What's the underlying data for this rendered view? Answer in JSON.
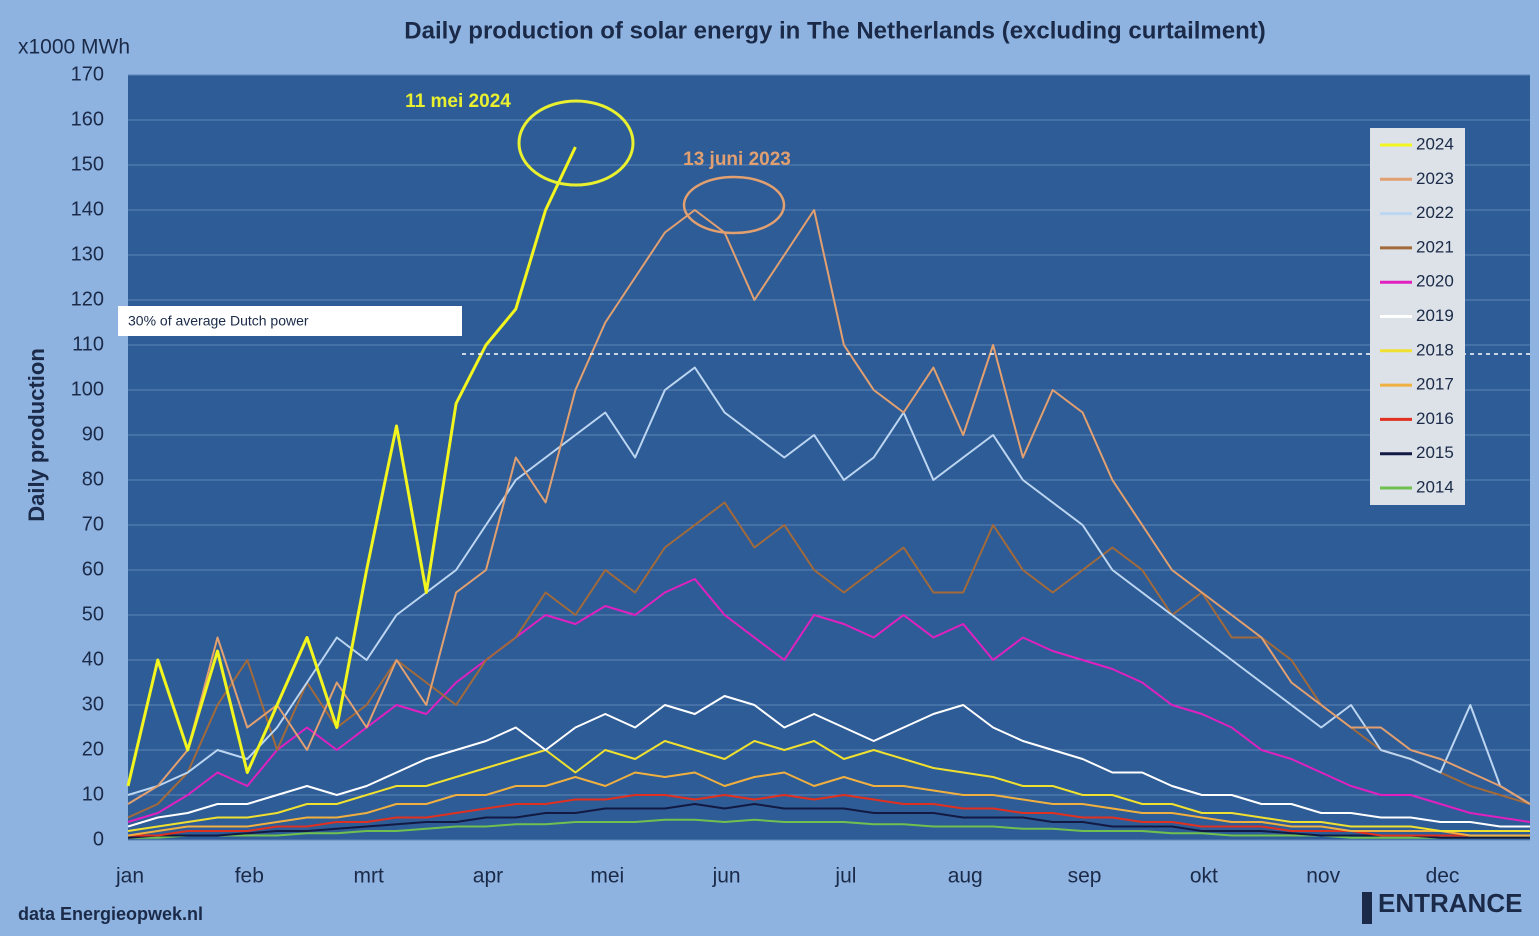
{
  "chart_data": {
    "type": "line",
    "title": "Daily production of solar energy in The Netherlands  (excluding curtailment)",
    "y_unit": "x1000 MWh",
    "y_label": "Daily production",
    "source": "data Energieopwek.nl",
    "logo": "ENTRANCE",
    "annotations": [
      "11 mei 2024",
      "13 juni 2023"
    ],
    "reference_label": "30% of average Dutch power",
    "reference_value": 108,
    "ylim": [
      0,
      170
    ],
    "yticks": [
      0,
      10,
      20,
      30,
      40,
      50,
      60,
      70,
      80,
      90,
      100,
      110,
      120,
      130,
      140,
      150,
      160,
      170
    ],
    "grid": true,
    "legend": "right",
    "categories": [
      "jan",
      null,
      null,
      null,
      "feb",
      null,
      null,
      null,
      "mrt",
      null,
      null,
      null,
      "apr",
      null,
      null,
      null,
      "mei",
      null,
      null,
      null,
      "jun",
      null,
      null,
      null,
      "jul",
      null,
      null,
      null,
      "aug",
      null,
      null,
      null,
      "sep",
      null,
      null,
      null,
      "okt",
      null,
      null,
      null,
      "nov",
      null,
      null,
      null,
      "dec",
      null,
      null,
      null
    ],
    "series": [
      {
        "name": "2024",
        "color": "#f2f51e",
        "values": [
          12,
          40,
          20,
          42,
          15,
          30,
          45,
          25,
          60,
          92,
          55,
          97,
          110,
          118,
          140,
          154,
          null,
          null,
          null,
          null,
          null,
          null,
          null,
          null,
          null,
          null,
          null,
          null,
          null,
          null,
          null,
          null,
          null,
          null,
          null,
          null,
          null,
          null,
          null,
          null,
          null,
          null,
          null,
          null,
          null,
          null,
          null,
          null
        ]
      },
      {
        "name": "2023",
        "color": "#e2a070",
        "values": [
          8,
          12,
          20,
          45,
          25,
          30,
          20,
          35,
          25,
          40,
          30,
          55,
          60,
          85,
          75,
          100,
          115,
          125,
          135,
          140,
          135,
          120,
          130,
          140,
          110,
          100,
          95,
          105,
          90,
          110,
          85,
          100,
          95,
          80,
          70,
          60,
          55,
          50,
          45,
          35,
          30,
          25,
          25,
          20,
          18,
          15,
          12,
          8
        ]
      },
      {
        "name": "2022",
        "color": "#bcd6f2",
        "values": [
          10,
          12,
          15,
          20,
          18,
          25,
          35,
          45,
          40,
          50,
          55,
          60,
          70,
          80,
          85,
          90,
          95,
          85,
          100,
          105,
          95,
          90,
          85,
          90,
          80,
          85,
          95,
          80,
          85,
          90,
          80,
          75,
          70,
          60,
          55,
          50,
          45,
          40,
          35,
          30,
          25,
          30,
          20,
          18,
          15,
          30,
          12,
          8
        ]
      },
      {
        "name": "2021",
        "color": "#a26a3a",
        "values": [
          5,
          8,
          15,
          30,
          40,
          20,
          35,
          25,
          30,
          40,
          35,
          30,
          40,
          45,
          55,
          50,
          60,
          55,
          65,
          70,
          75,
          65,
          70,
          60,
          55,
          60,
          65,
          55,
          55,
          70,
          60,
          55,
          60,
          65,
          60,
          50,
          55,
          45,
          45,
          40,
          30,
          25,
          20,
          18,
          15,
          12,
          10,
          8
        ]
      },
      {
        "name": "2020",
        "color": "#e020c0",
        "values": [
          4,
          6,
          10,
          15,
          12,
          20,
          25,
          20,
          25,
          30,
          28,
          35,
          40,
          45,
          50,
          48,
          52,
          50,
          55,
          58,
          50,
          45,
          40,
          50,
          48,
          45,
          50,
          45,
          48,
          40,
          45,
          42,
          40,
          38,
          35,
          30,
          28,
          25,
          20,
          18,
          15,
          12,
          10,
          10,
          8,
          6,
          5,
          4
        ]
      },
      {
        "name": "2019",
        "color": "#ffffff",
        "values": [
          3,
          5,
          6,
          8,
          8,
          10,
          12,
          10,
          12,
          15,
          18,
          20,
          22,
          25,
          20,
          25,
          28,
          25,
          30,
          28,
          32,
          30,
          25,
          28,
          25,
          22,
          25,
          28,
          30,
          25,
          22,
          20,
          18,
          15,
          15,
          12,
          10,
          10,
          8,
          8,
          6,
          6,
          5,
          5,
          4,
          4,
          3,
          3
        ]
      },
      {
        "name": "2018",
        "color": "#f0e030",
        "values": [
          2,
          3,
          4,
          5,
          5,
          6,
          8,
          8,
          10,
          12,
          12,
          14,
          16,
          18,
          20,
          15,
          20,
          18,
          22,
          20,
          18,
          22,
          20,
          22,
          18,
          20,
          18,
          16,
          15,
          14,
          12,
          12,
          10,
          10,
          8,
          8,
          6,
          6,
          5,
          4,
          4,
          3,
          3,
          3,
          2,
          2,
          2,
          2
        ]
      },
      {
        "name": "2017",
        "color": "#f0b040",
        "values": [
          1,
          2,
          3,
          3,
          3,
          4,
          5,
          5,
          6,
          8,
          8,
          10,
          10,
          12,
          12,
          14,
          12,
          15,
          14,
          15,
          12,
          14,
          15,
          12,
          14,
          12,
          12,
          11,
          10,
          10,
          9,
          8,
          8,
          7,
          6,
          6,
          5,
          4,
          4,
          3,
          3,
          2,
          2,
          2,
          2,
          1,
          1,
          1
        ]
      },
      {
        "name": "2016",
        "color": "#e03020",
        "values": [
          1,
          1,
          2,
          2,
          2,
          3,
          3,
          4,
          4,
          5,
          5,
          6,
          7,
          8,
          8,
          9,
          9,
          10,
          10,
          9,
          10,
          9,
          10,
          9,
          10,
          9,
          8,
          8,
          7,
          7,
          6,
          6,
          5,
          5,
          4,
          4,
          3,
          3,
          3,
          2,
          2,
          2,
          1,
          1,
          1,
          1,
          1,
          1
        ]
      },
      {
        "name": "2015",
        "color": "#121a44",
        "values": [
          0.5,
          1,
          1,
          1,
          1.5,
          2,
          2,
          2.5,
          3,
          3.5,
          4,
          4,
          5,
          5,
          6,
          6,
          7,
          7,
          7,
          8,
          7,
          8,
          7,
          7,
          7,
          6,
          6,
          6,
          5,
          5,
          5,
          4,
          4,
          3,
          3,
          3,
          2,
          2,
          2,
          1.5,
          1,
          1,
          1,
          1,
          0.5,
          0.5,
          0.5,
          0.5
        ]
      },
      {
        "name": "2014",
        "color": "#70c050",
        "values": [
          0.5,
          0.5,
          1,
          1,
          1,
          1,
          1.5,
          1.5,
          2,
          2,
          2.5,
          3,
          3,
          3.5,
          3.5,
          4,
          4,
          4,
          4.5,
          4.5,
          4,
          4.5,
          4,
          4,
          4,
          3.5,
          3.5,
          3,
          3,
          3,
          2.5,
          2.5,
          2,
          2,
          2,
          1.5,
          1.5,
          1,
          1,
          1,
          1,
          0.5,
          0.5,
          0.5,
          0.5,
          0.5,
          0.5,
          0.5
        ]
      }
    ]
  }
}
